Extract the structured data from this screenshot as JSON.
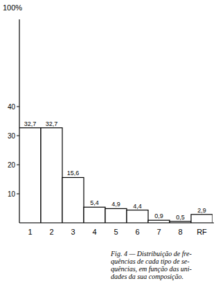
{
  "chart_data": {
    "type": "bar",
    "y_label": "100%",
    "categories": [
      "1",
      "2",
      "3",
      "4",
      "5",
      "6",
      "7",
      "8",
      "RF"
    ],
    "values": [
      32.7,
      32.7,
      15.6,
      5.4,
      4.9,
      4.4,
      0.9,
      0.5,
      2.9
    ],
    "value_labels": [
      "32,7",
      "32,7",
      "15,6",
      "5,4",
      "4,9",
      "4,4",
      "0,9",
      "0,5",
      "2,9"
    ],
    "color": "#ffffff",
    "ylim": [
      0,
      70
    ],
    "yticks": [
      10,
      20,
      30,
      40
    ],
    "grid": false,
    "data_labels": true,
    "caption": [
      "Fig. 4 — Distribuição de fre-",
      "quências de cada tipo de se-",
      "quências, em função das uni-",
      "dades da sua composição."
    ]
  }
}
